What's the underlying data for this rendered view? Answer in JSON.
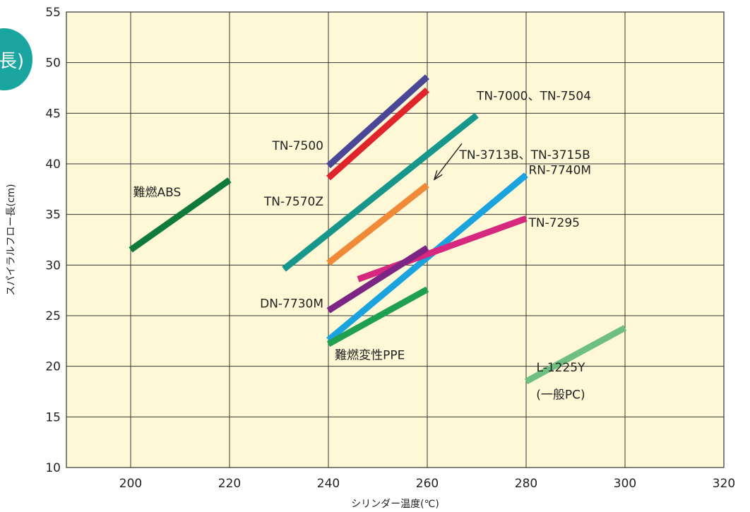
{
  "chart_data": {
    "type": "line",
    "title": "",
    "xlabel": "シリンダー温度(℃)",
    "ylabel": "スパイラルフロー長(cm)",
    "xlim": [
      187,
      320
    ],
    "ylim": [
      10,
      55
    ],
    "xticks": [
      200,
      220,
      240,
      260,
      280,
      300,
      320
    ],
    "yticks": [
      10,
      15,
      20,
      25,
      30,
      35,
      40,
      45,
      50,
      55
    ],
    "grid": true,
    "background_color": "#FFF8D6",
    "corner_fragment": "長)",
    "series": [
      {
        "name": "TN-7500",
        "color": "#4A4796",
        "x": [
          240,
          260
        ],
        "y": [
          39.8,
          48.6
        ]
      },
      {
        "name": "TN-7570Z",
        "color": "#E0242B",
        "x": [
          240,
          260
        ],
        "y": [
          38.6,
          47.3
        ]
      },
      {
        "name": "TN-7000、TN-7504",
        "color": "#17968C",
        "x": [
          231,
          270
        ],
        "y": [
          29.6,
          44.8
        ]
      },
      {
        "name": "TN-3713B、TN-3715B",
        "color": "#F08A38",
        "x": [
          240,
          260
        ],
        "y": [
          30.2,
          37.9
        ]
      },
      {
        "name": "RN-7740M",
        "color": "#1AA3DE",
        "x": [
          240,
          280
        ],
        "y": [
          22.6,
          38.9
        ]
      },
      {
        "name": "TN-7295",
        "color": "#D6287E",
        "x": [
          246,
          280
        ],
        "y": [
          28.6,
          34.6
        ]
      },
      {
        "name": "DN-7730M",
        "color": "#7D2585",
        "x": [
          240,
          260
        ],
        "y": [
          25.5,
          31.7
        ]
      },
      {
        "name": "難燃変性PPE",
        "color": "#1FA050",
        "x": [
          240,
          260
        ],
        "y": [
          22.2,
          27.6
        ]
      },
      {
        "name": "難燃ABS",
        "color": "#0F7A3C",
        "x": [
          200,
          220
        ],
        "y": [
          31.5,
          38.4
        ]
      },
      {
        "name": "L-1225Y",
        "color": "#6FBF82",
        "x": [
          280,
          300
        ],
        "y": [
          18.5,
          23.8
        ]
      }
    ],
    "annotations": [
      {
        "text": "TN-7000、TN-7504",
        "x": 270,
        "y": 46.3,
        "anchor": "start"
      },
      {
        "text": "TN-3713B、TN-3715B",
        "x": 266.5,
        "y": 40.5,
        "anchor": "start"
      },
      {
        "text": "TN-7500",
        "x": 239,
        "y": 41.4,
        "anchor": "end"
      },
      {
        "text": "TN-7570Z",
        "x": 239,
        "y": 35.9,
        "anchor": "end"
      },
      {
        "text": "難燃ABS",
        "x": 200.5,
        "y": 36.8,
        "anchor": "start"
      },
      {
        "text": "RN-7740M",
        "x": 280.5,
        "y": 39.0,
        "anchor": "start"
      },
      {
        "text": "TN-7295",
        "x": 280.5,
        "y": 33.8,
        "anchor": "start"
      },
      {
        "text": "DN-7730M",
        "x": 239,
        "y": 25.8,
        "anchor": "end"
      },
      {
        "text": "難燃変性PPE",
        "x": 241.3,
        "y": 20.7,
        "anchor": "start"
      },
      {
        "text": "L-1225Y",
        "x": 287,
        "y": 19.5,
        "anchor": "middle"
      },
      {
        "text": "(一般PC)",
        "x": 287,
        "y": 16.8,
        "anchor": "middle"
      }
    ],
    "arrow": {
      "from": [
        267,
        42.0
      ],
      "to": [
        261.5,
        38.5
      ]
    }
  }
}
